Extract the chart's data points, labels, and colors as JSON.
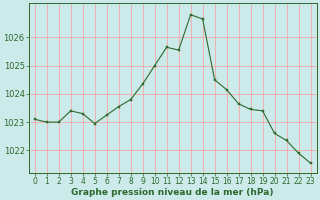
{
  "hours": [
    0,
    1,
    2,
    3,
    4,
    5,
    6,
    7,
    8,
    9,
    10,
    11,
    12,
    13,
    14,
    15,
    16,
    17,
    18,
    19,
    20,
    21,
    22,
    23
  ],
  "pressure": [
    1023.1,
    1023.0,
    1023.0,
    1023.4,
    1023.3,
    1022.95,
    1023.25,
    1023.55,
    1023.8,
    1024.35,
    1025.0,
    1025.65,
    1025.55,
    1026.8,
    1026.65,
    1024.5,
    1024.15,
    1023.65,
    1023.45,
    1023.4,
    1022.6,
    1022.35,
    1021.9,
    1021.55
  ],
  "line_color": "#2d6a2d",
  "marker_color": "#2d6a2d",
  "bg_color": "#cceaea",
  "grid_color": "#ff9999",
  "axis_line_color": "#2d6a2d",
  "xlabel": "Graphe pression niveau de la mer (hPa)",
  "xlabel_color": "#2d6a2d",
  "yticks": [
    1022,
    1023,
    1024,
    1025,
    1026
  ],
  "ylim": [
    1021.2,
    1027.2
  ],
  "tick_color": "#2d6a2d",
  "tick_fontsize": 5.5,
  "xlabel_fontsize": 6.5
}
